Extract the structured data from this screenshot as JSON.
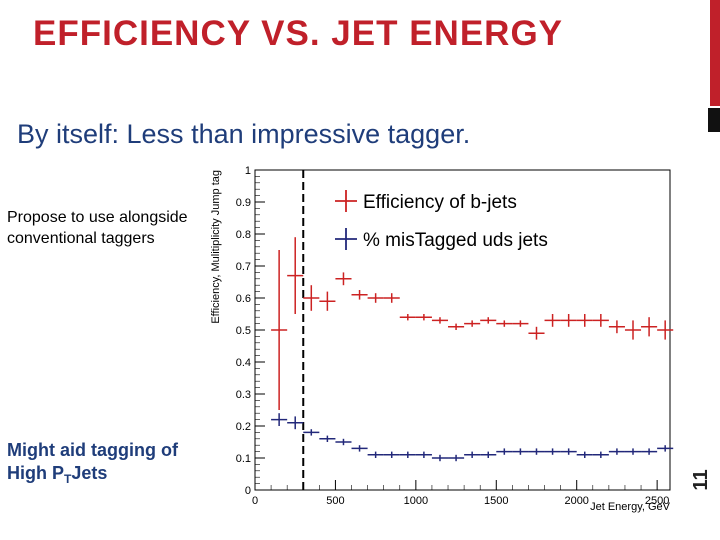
{
  "slide": {
    "title": "EFFICIENCY VS. JET ENERGY",
    "subtitle": "By itself: Less than impressive tagger.",
    "note_top": "Propose to use alongside conventional taggers",
    "note_bottom_prefix": "Might aid tagging of High P",
    "note_bottom_sub": "T",
    "note_bottom_suffix": "Jets",
    "slide_number": "11",
    "colors": {
      "title": "#c0202a",
      "subtitle": "#1f3d7a",
      "series1": "#cc2222",
      "series2": "#22287a"
    }
  },
  "chart_data": {
    "type": "scatter",
    "title": "",
    "xlabel": "Jet Energy, GeV",
    "ylabel": "Efficiency, Mulitiplicity Jump tag",
    "xlim": [
      0,
      2580
    ],
    "ylim": [
      0,
      1
    ],
    "x_ticks": [
      0,
      500,
      1000,
      1500,
      2000,
      2500
    ],
    "y_ticks": [
      0,
      0.1,
      0.2,
      0.3,
      0.4,
      0.5,
      0.6,
      0.7,
      0.8,
      0.9,
      1
    ],
    "y_tick_labels": [
      "0",
      "0.1",
      "0.2",
      "0.3",
      "0.4",
      "0.5",
      "0.6",
      "0.7",
      "0.8",
      "0.9",
      "1"
    ],
    "cut_line_x": 300,
    "legend": {
      "position": "top",
      "entries": [
        "Efficiency of b-jets",
        "% misTagged uds jets"
      ]
    },
    "series": [
      {
        "name": "Efficiency of b-jets",
        "points": [
          {
            "x": 150,
            "y": 0.5,
            "xerr": 50,
            "yerr": 0.25
          },
          {
            "x": 250,
            "y": 0.67,
            "xerr": 50,
            "yerr": 0.12
          },
          {
            "x": 350,
            "y": 0.6,
            "xerr": 50,
            "yerr": 0.04
          },
          {
            "x": 450,
            "y": 0.59,
            "xerr": 50,
            "yerr": 0.03
          },
          {
            "x": 550,
            "y": 0.66,
            "xerr": 50,
            "yerr": 0.02
          },
          {
            "x": 650,
            "y": 0.61,
            "xerr": 50,
            "yerr": 0.015
          },
          {
            "x": 750,
            "y": 0.6,
            "xerr": 50,
            "yerr": 0.015
          },
          {
            "x": 850,
            "y": 0.6,
            "xerr": 50,
            "yerr": 0.015
          },
          {
            "x": 950,
            "y": 0.54,
            "xerr": 50,
            "yerr": 0.01
          },
          {
            "x": 1050,
            "y": 0.54,
            "xerr": 50,
            "yerr": 0.01
          },
          {
            "x": 1150,
            "y": 0.53,
            "xerr": 50,
            "yerr": 0.01
          },
          {
            "x": 1250,
            "y": 0.51,
            "xerr": 50,
            "yerr": 0.01
          },
          {
            "x": 1350,
            "y": 0.52,
            "xerr": 50,
            "yerr": 0.01
          },
          {
            "x": 1450,
            "y": 0.53,
            "xerr": 50,
            "yerr": 0.01
          },
          {
            "x": 1550,
            "y": 0.52,
            "xerr": 50,
            "yerr": 0.01
          },
          {
            "x": 1650,
            "y": 0.52,
            "xerr": 50,
            "yerr": 0.01
          },
          {
            "x": 1750,
            "y": 0.49,
            "xerr": 50,
            "yerr": 0.02
          },
          {
            "x": 1850,
            "y": 0.53,
            "xerr": 50,
            "yerr": 0.02
          },
          {
            "x": 1950,
            "y": 0.53,
            "xerr": 50,
            "yerr": 0.02
          },
          {
            "x": 2050,
            "y": 0.53,
            "xerr": 50,
            "yerr": 0.02
          },
          {
            "x": 2150,
            "y": 0.53,
            "xerr": 50,
            "yerr": 0.02
          },
          {
            "x": 2250,
            "y": 0.51,
            "xerr": 50,
            "yerr": 0.02
          },
          {
            "x": 2350,
            "y": 0.5,
            "xerr": 50,
            "yerr": 0.03
          },
          {
            "x": 2450,
            "y": 0.51,
            "xerr": 50,
            "yerr": 0.03
          },
          {
            "x": 2550,
            "y": 0.5,
            "xerr": 50,
            "yerr": 0.03
          }
        ]
      },
      {
        "name": "% misTagged uds jets",
        "points": [
          {
            "x": 150,
            "y": 0.22,
            "xerr": 50,
            "yerr": 0.02
          },
          {
            "x": 250,
            "y": 0.21,
            "xerr": 50,
            "yerr": 0.02
          },
          {
            "x": 350,
            "y": 0.18,
            "xerr": 50,
            "yerr": 0.01
          },
          {
            "x": 450,
            "y": 0.16,
            "xerr": 50,
            "yerr": 0.01
          },
          {
            "x": 550,
            "y": 0.15,
            "xerr": 50,
            "yerr": 0.01
          },
          {
            "x": 650,
            "y": 0.13,
            "xerr": 50,
            "yerr": 0.01
          },
          {
            "x": 750,
            "y": 0.11,
            "xerr": 50,
            "yerr": 0.01
          },
          {
            "x": 850,
            "y": 0.11,
            "xerr": 50,
            "yerr": 0.01
          },
          {
            "x": 950,
            "y": 0.11,
            "xerr": 50,
            "yerr": 0.01
          },
          {
            "x": 1050,
            "y": 0.11,
            "xerr": 50,
            "yerr": 0.01
          },
          {
            "x": 1150,
            "y": 0.1,
            "xerr": 50,
            "yerr": 0.01
          },
          {
            "x": 1250,
            "y": 0.1,
            "xerr": 50,
            "yerr": 0.01
          },
          {
            "x": 1350,
            "y": 0.11,
            "xerr": 50,
            "yerr": 0.01
          },
          {
            "x": 1450,
            "y": 0.11,
            "xerr": 50,
            "yerr": 0.01
          },
          {
            "x": 1550,
            "y": 0.12,
            "xerr": 50,
            "yerr": 0.01
          },
          {
            "x": 1650,
            "y": 0.12,
            "xerr": 50,
            "yerr": 0.01
          },
          {
            "x": 1750,
            "y": 0.12,
            "xerr": 50,
            "yerr": 0.01
          },
          {
            "x": 1850,
            "y": 0.12,
            "xerr": 50,
            "yerr": 0.01
          },
          {
            "x": 1950,
            "y": 0.12,
            "xerr": 50,
            "yerr": 0.01
          },
          {
            "x": 2050,
            "y": 0.11,
            "xerr": 50,
            "yerr": 0.01
          },
          {
            "x": 2150,
            "y": 0.11,
            "xerr": 50,
            "yerr": 0.01
          },
          {
            "x": 2250,
            "y": 0.12,
            "xerr": 50,
            "yerr": 0.01
          },
          {
            "x": 2350,
            "y": 0.12,
            "xerr": 50,
            "yerr": 0.01
          },
          {
            "x": 2450,
            "y": 0.12,
            "xerr": 50,
            "yerr": 0.01
          },
          {
            "x": 2550,
            "y": 0.13,
            "xerr": 50,
            "yerr": 0.01
          }
        ]
      }
    ]
  }
}
